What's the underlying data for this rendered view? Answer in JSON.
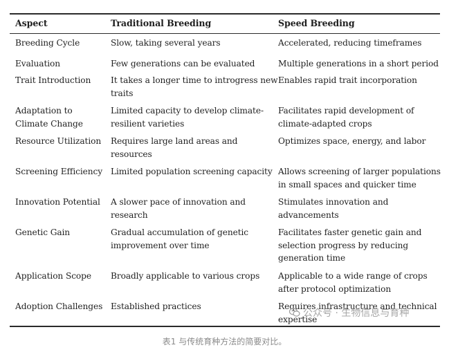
{
  "table": {
    "headers": [
      "Aspect",
      "Traditional Breeding",
      "Speed Breeding"
    ],
    "rows": [
      {
        "aspect": [
          "Breeding Cycle"
        ],
        "traditional": [
          "Slow, taking several years"
        ],
        "speed": [
          "Accelerated, reducing timeframes"
        ]
      },
      {
        "aspect": [
          "Evaluation"
        ],
        "traditional": [
          "Few generations can be evaluated"
        ],
        "speed": [
          "Multiple generations in a short period"
        ]
      },
      {
        "aspect": [
          "Trait Introduction"
        ],
        "traditional": [
          "It takes a longer time to introgress new",
          "traits"
        ],
        "speed": [
          "Enables rapid trait incorporation"
        ]
      },
      {
        "aspect": [
          "Adaptation to",
          "Climate Change"
        ],
        "traditional": [
          "Limited capacity to develop climate-",
          "resilient varieties"
        ],
        "speed": [
          "Facilitates rapid development of",
          "climate-adapted crops"
        ]
      },
      {
        "aspect": [
          "Resource Utilization"
        ],
        "traditional": [
          "Requires large land areas and",
          "resources"
        ],
        "speed": [
          "Optimizes space, energy, and labor"
        ]
      },
      {
        "aspect": [
          "Screening Efficiency"
        ],
        "traditional": [
          "Limited population screening capacity"
        ],
        "speed": [
          "Allows screening of larger populations",
          "in small spaces and quicker time"
        ]
      },
      {
        "aspect": [
          "Innovation Potential"
        ],
        "traditional": [
          "A slower pace of innovation and",
          "research"
        ],
        "speed": [
          "Stimulates innovation and",
          "advancements"
        ]
      },
      {
        "aspect": [
          "Genetic Gain"
        ],
        "traditional": [
          "Gradual accumulation of genetic",
          "improvement over time"
        ],
        "speed": [
          "Facilitates faster genetic gain and",
          "selection progress by reducing",
          "generation time"
        ]
      },
      {
        "aspect": [
          "Application Scope"
        ],
        "traditional": [
          "Broadly applicable to various crops"
        ],
        "speed": [
          "Applicable to a wide range of crops",
          "after protocol optimization"
        ]
      },
      {
        "aspect": [
          "Adoption Challenges"
        ],
        "traditional": [
          "Established practices"
        ],
        "speed": [
          "Requires infrastructure and technical",
          "expertise"
        ]
      }
    ]
  },
  "caption": "表1 与传统育种方法的简要对比。",
  "watermark": {
    "text": "公众号 · 生物信息与育种",
    "icon": "wechat-icon"
  }
}
